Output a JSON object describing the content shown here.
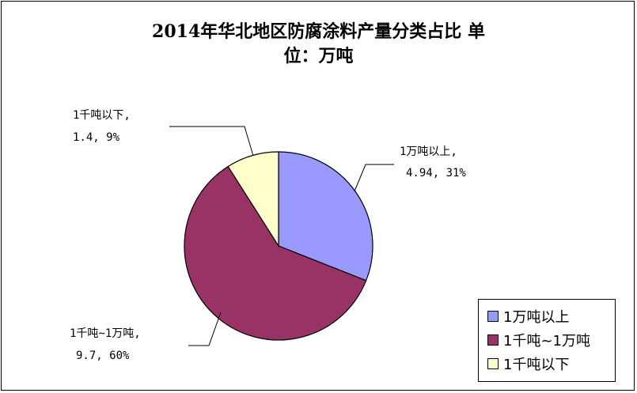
{
  "chart_data": {
    "type": "pie",
    "title": "2014年华北地区防腐涂料产量分类占比 单位：万吨",
    "title_lines": [
      "2014年华北地区防腐涂料产量分类占比 单",
      "位：万吨"
    ],
    "slices": [
      {
        "name": "1万吨以上",
        "value": 4.94,
        "percent": 31,
        "color": "#9999ff",
        "label_lines": [
          "1万吨以上,",
          "4.94, 31%"
        ]
      },
      {
        "name": "1千吨~1万吨",
        "value": 9.7,
        "percent": 60,
        "color": "#993366",
        "label_lines": [
          "1千吨~1万吨,",
          "9.7, 60%"
        ]
      },
      {
        "name": "1千吨以下",
        "value": 1.4,
        "percent": 9,
        "color": "#ffffcc",
        "label_lines": [
          "1千吨以下,",
          "1.4, 9%"
        ]
      }
    ],
    "start_angle": "12 o'clock",
    "direction": "clockwise",
    "legend": {
      "position": "bottom-right",
      "items": [
        "1万吨以上",
        "1千吨~1万吨",
        "1千吨以下"
      ]
    }
  }
}
